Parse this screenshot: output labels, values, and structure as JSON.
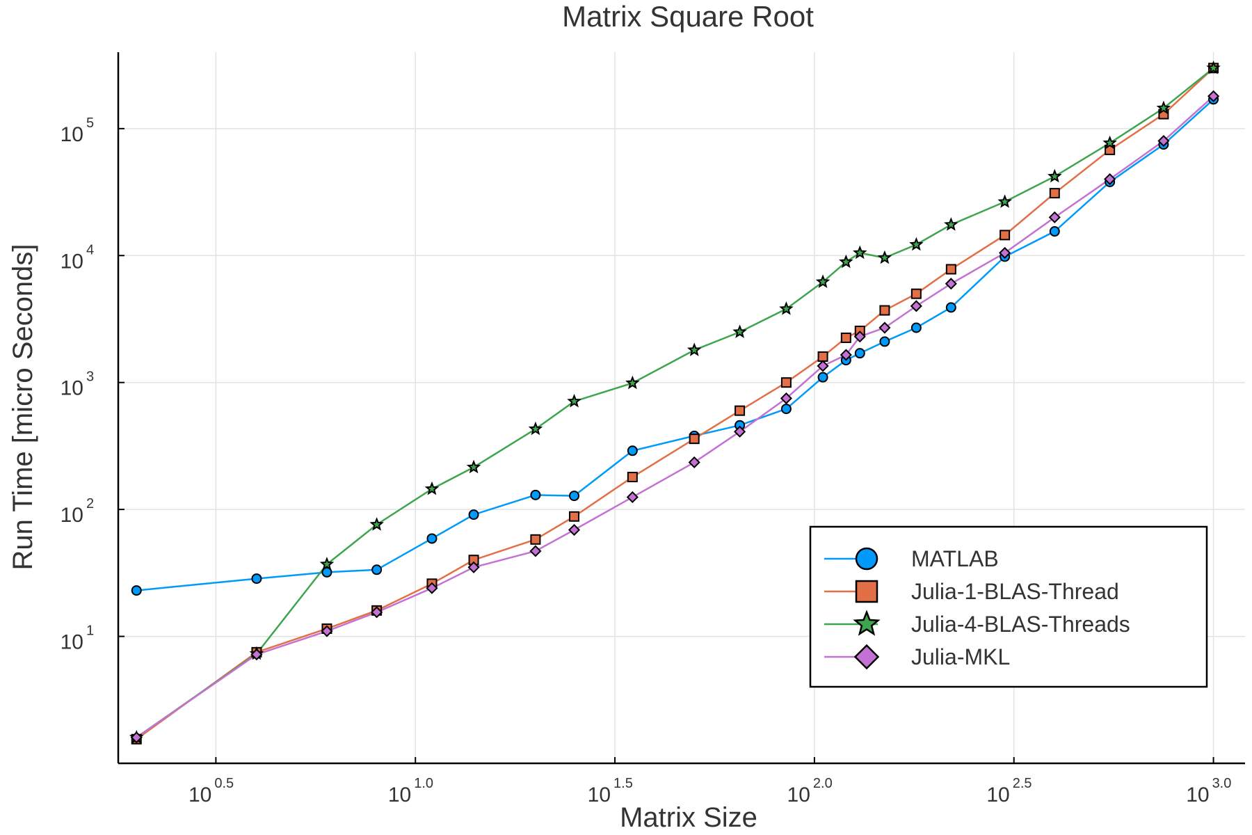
{
  "chart_data": {
    "type": "line",
    "title": "Matrix Square Root",
    "xlabel": "Matrix Size",
    "ylabel": "Run Time  [micro Seconds]",
    "x_scale": "log10",
    "y_scale": "log10",
    "xlim": [
      1.8,
      1200
    ],
    "ylim": [
      1.0,
      400000
    ],
    "x_ticks": [
      {
        "base": "10",
        "exp": "0.5",
        "value": 3.162
      },
      {
        "base": "10",
        "exp": "1.0",
        "value": 10
      },
      {
        "base": "10",
        "exp": "1.5",
        "value": 31.62
      },
      {
        "base": "10",
        "exp": "2.0",
        "value": 100
      },
      {
        "base": "10",
        "exp": "2.5",
        "value": 316.2
      },
      {
        "base": "10",
        "exp": "3.0",
        "value": 1000
      }
    ],
    "y_ticks": [
      {
        "base": "10",
        "exp": "1",
        "value": 10
      },
      {
        "base": "10",
        "exp": "2",
        "value": 100
      },
      {
        "base": "10",
        "exp": "3",
        "value": 1000
      },
      {
        "base": "10",
        "exp": "4",
        "value": 10000
      },
      {
        "base": "10",
        "exp": "5",
        "value": 100000
      }
    ],
    "grid": true,
    "legend_position": "bottom-right",
    "x": [
      2,
      4,
      6,
      8,
      11,
      14,
      20,
      25,
      35,
      50,
      65,
      85,
      105,
      120,
      130,
      150,
      180,
      220,
      300,
      400,
      550,
      750,
      1000
    ],
    "series": [
      {
        "name": "MATLAB",
        "color": "#009AFA",
        "marker": "circle",
        "values": [
          23,
          28.5,
          32,
          33.5,
          59,
          91,
          130,
          128,
          290,
          380,
          460,
          620,
          1100,
          1500,
          1700,
          2100,
          2700,
          3900,
          9800,
          15500,
          38000,
          75000,
          170000
        ]
      },
      {
        "name": "Julia-1-BLAS-Thread",
        "color": "#E36F47",
        "marker": "square",
        "values": [
          1.55,
          7.5,
          11.5,
          16,
          26,
          40,
          58,
          88,
          180,
          360,
          600,
          1000,
          1600,
          2250,
          2550,
          3700,
          5000,
          7800,
          14500,
          31000,
          68000,
          130000,
          300000
        ]
      },
      {
        "name": "Julia-4-BLAS-Threads",
        "color": "#3EA44E",
        "marker": "star",
        "values": [
          1.6,
          7.3,
          37,
          76,
          145,
          215,
          430,
          710,
          990,
          1800,
          2500,
          3800,
          6200,
          8900,
          10500,
          9600,
          12200,
          17500,
          26500,
          42000,
          77000,
          145000,
          300000
        ]
      },
      {
        "name": "Julia-MKL",
        "color": "#C371D2",
        "marker": "diamond",
        "values": [
          1.6,
          7.2,
          11,
          15.5,
          24,
          35,
          47,
          69,
          125,
          235,
          410,
          750,
          1350,
          1650,
          2300,
          2700,
          4000,
          6000,
          10500,
          20000,
          40000,
          80000,
          180000
        ]
      }
    ]
  }
}
